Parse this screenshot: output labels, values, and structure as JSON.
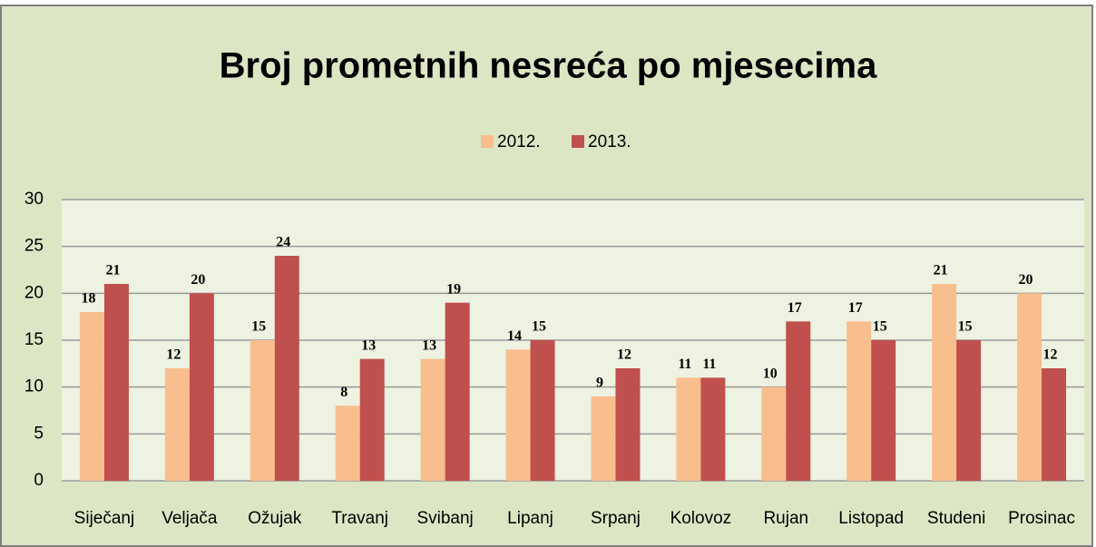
{
  "chart_data": {
    "type": "bar",
    "title": "Broj prometnih nesreća po mjesecima",
    "categories": [
      "Siječanj",
      "Veljača",
      "Ožujak",
      "Travanj",
      "Svibanj",
      "Lipanj",
      "Srpanj",
      "Kolovoz",
      "Rujan",
      "Listopad",
      "Studeni",
      "Prosinac"
    ],
    "series": [
      {
        "name": "2012.",
        "color": "#f9be8e",
        "values": [
          18,
          12,
          15,
          8,
          13,
          14,
          9,
          11,
          10,
          17,
          21,
          20
        ]
      },
      {
        "name": "2013.",
        "color": "#c0504d",
        "values": [
          21,
          20,
          24,
          13,
          19,
          15,
          12,
          11,
          17,
          15,
          15,
          12
        ]
      }
    ],
    "ylim": [
      0,
      30
    ],
    "yticks": [
      0,
      5,
      10,
      15,
      20,
      25,
      30
    ],
    "grid": true,
    "legend": "top",
    "data_labels": true
  }
}
